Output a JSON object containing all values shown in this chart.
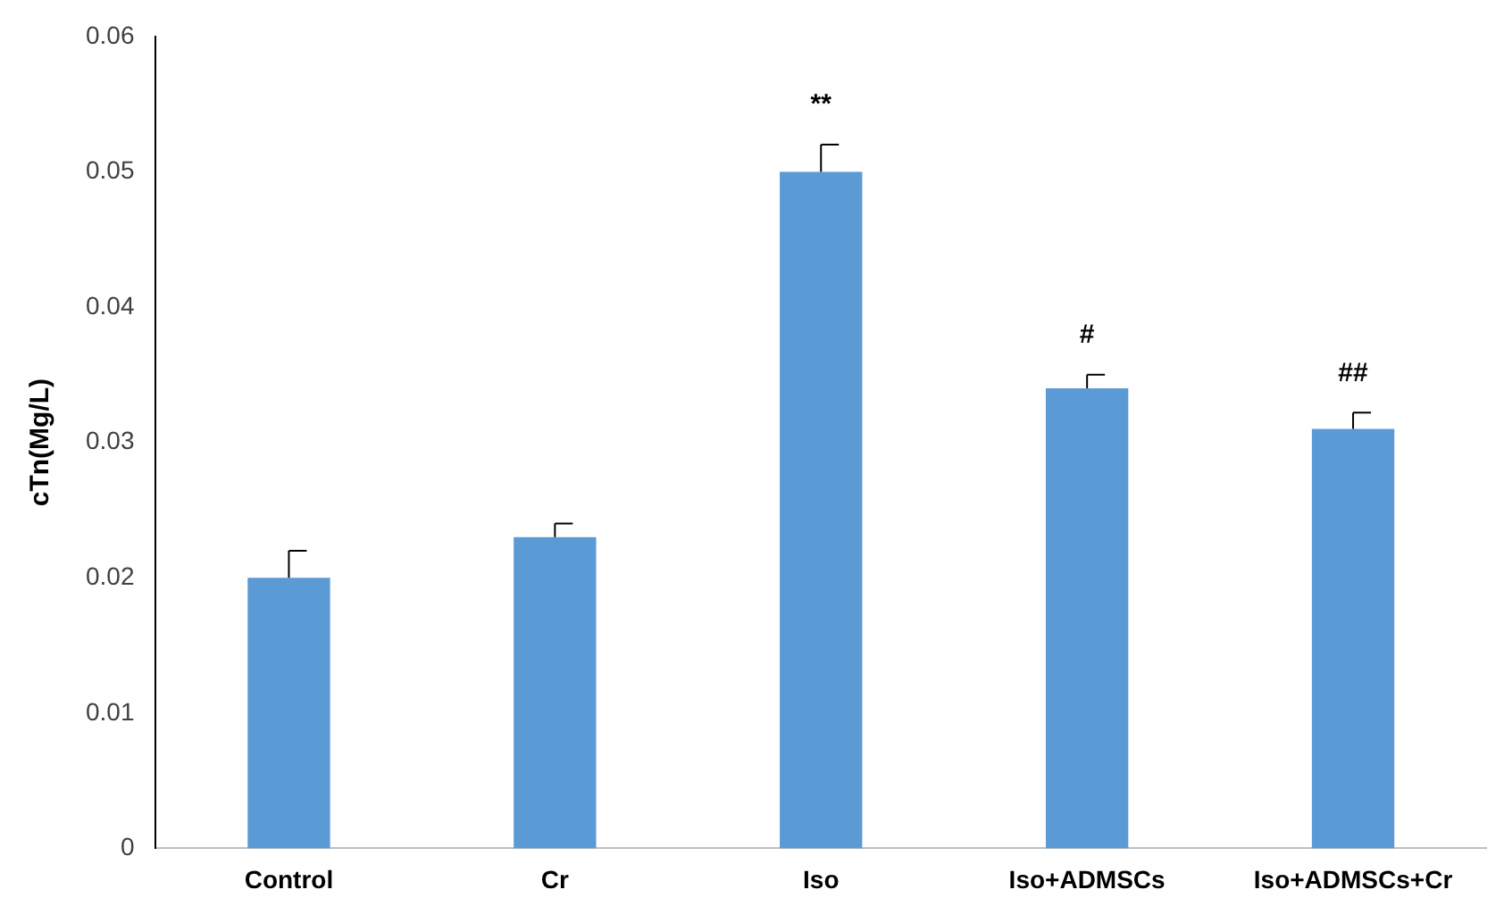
{
  "chart_data": {
    "type": "bar",
    "ylabel": "cTn(Mg/L)",
    "categories": [
      "Control",
      "Cr",
      "Iso",
      "Iso+ADMSCs",
      "Iso+ADMSCs+Cr"
    ],
    "values": [
      0.02,
      0.023,
      0.05,
      0.034,
      0.031
    ],
    "errors": [
      [
        0.02,
        0.022
      ],
      [
        0.023,
        0.024
      ],
      [
        0.05,
        0.052
      ],
      [
        0.034,
        0.035
      ],
      [
        0.031,
        0.0322
      ]
    ],
    "color": "#5b9bd5",
    "ylim": [
      0,
      0.06
    ],
    "yticks": [
      0,
      0.01,
      0.02,
      0.03,
      0.04,
      0.05,
      0.06
    ],
    "grid": false,
    "legend": false,
    "annotations": [
      "**",
      "#",
      "##"
    ]
  }
}
